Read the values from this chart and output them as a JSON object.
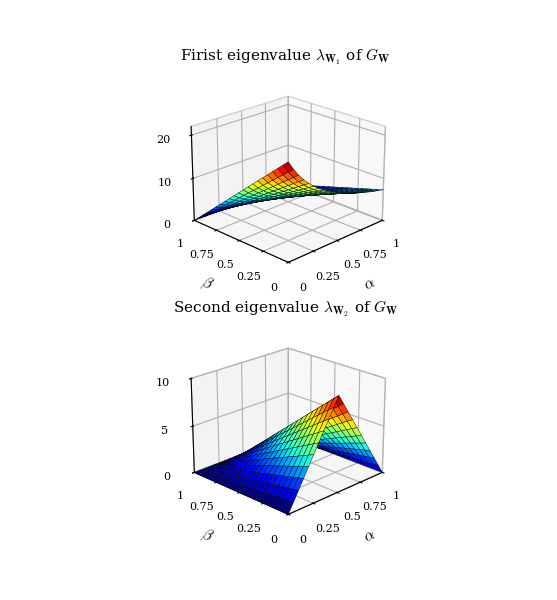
{
  "title1": "Firist eigenvalue $\\lambda_{\\mathbf{W}_1}$ of $G_{\\mathbf{W}}$",
  "title2": "Second eigenvalue $\\lambda_{\\mathbf{W}_2}$ of $G_{\\mathbf{W}}$",
  "alpha_range": [
    0,
    1
  ],
  "beta_range": [
    0,
    1
  ],
  "n_points": 21,
  "xlabel": "$\\alpha$",
  "ylabel": "$\\beta$",
  "zlim1": [
    0,
    22
  ],
  "zlim2": [
    0,
    10
  ],
  "zticks1": [
    0,
    10,
    20
  ],
  "zticks2": [
    0,
    5,
    10
  ],
  "axis_ticks": [
    0,
    0.25,
    0.5,
    0.75,
    1
  ],
  "figsize": [
    5.57,
    6.0
  ],
  "dpi": 100,
  "background_color": "#ffffff",
  "cmap": "jet",
  "elev": 22,
  "azim": -135,
  "grid_color": "#cccccc",
  "pane_color": "#f0f0f0"
}
